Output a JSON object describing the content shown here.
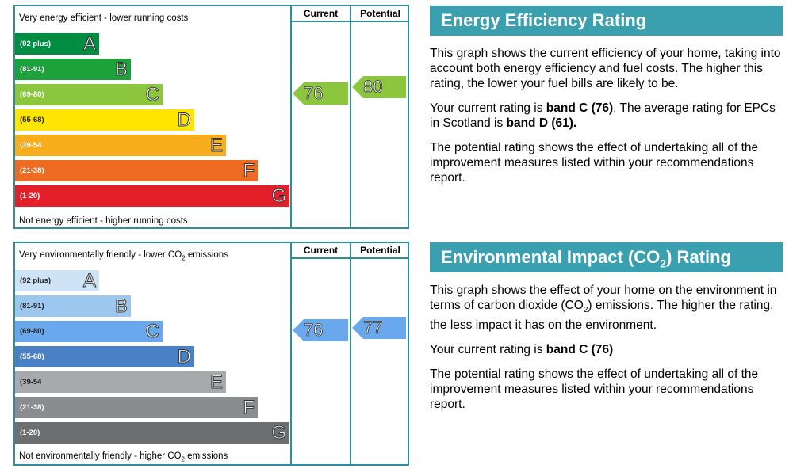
{
  "energy": {
    "top_caption": "Very energy efficient - lower running costs",
    "bottom_caption": "Not energy efficient - higher running costs",
    "current_header": "Current",
    "potential_header": "Potential",
    "bands": [
      {
        "range": "(92 plus)",
        "letter": "A",
        "color": "#008c41"
      },
      {
        "range": "(81-91)",
        "letter": "B",
        "color": "#1da23b"
      },
      {
        "range": "(69-80)",
        "letter": "C",
        "color": "#8cc63f"
      },
      {
        "range": "(55-68)",
        "letter": "D",
        "color": "#ffe500"
      },
      {
        "range": "(39-54",
        "letter": "E",
        "color": "#f7ad1c"
      },
      {
        "range": "(21-38)",
        "letter": "F",
        "color": "#ee6b24"
      },
      {
        "range": "(1-20)",
        "letter": "G",
        "color": "#e3202a"
      }
    ],
    "current_value": "76",
    "current_color": "#8cc63f",
    "potential_value": "80",
    "potential_color": "#8cc63f"
  },
  "environment": {
    "top_caption_pre": "Very environmentally friendly - lower CO",
    "top_caption_sub": "2",
    "top_caption_post": " emissions",
    "bottom_caption_pre": "Not environmentally friendly - higher CO",
    "bottom_caption_sub": "2",
    "bottom_caption_post": " emissions",
    "current_header": "Current",
    "potential_header": "Potential",
    "bands": [
      {
        "range": "(92 plus)",
        "letter": "A",
        "color": "#cfe3f6"
      },
      {
        "range": "(81-91)",
        "letter": "B",
        "color": "#9cc8ef"
      },
      {
        "range": "(69-80)",
        "letter": "C",
        "color": "#6aa8ee"
      },
      {
        "range": "(55-68)",
        "letter": "D",
        "color": "#4a80c6"
      },
      {
        "range": "(39-54",
        "letter": "E",
        "color": "#a7a9ac"
      },
      {
        "range": "(21-38)",
        "letter": "F",
        "color": "#8a8c8f"
      },
      {
        "range": "(1-20)",
        "letter": "G",
        "color": "#6d6e70"
      }
    ],
    "current_value": "76",
    "current_color": "#6aa8ee",
    "potential_value": "77",
    "potential_color": "#6aa8ee"
  },
  "panel_energy": {
    "title": "Energy Efficiency Rating",
    "p1": "This graph shows the current efficiency of your home, taking into account both energy efficiency and fuel costs. The higher this rating, the lower your fuel bills are likely to be.",
    "p2_pre": "Your current rating is ",
    "p2_bold1": "band C (76)",
    "p2_mid": ". The average rating for EPCs in Scotland is ",
    "p2_bold2": "band D (61).",
    "p3": "The potential rating shows the effect of undertaking all of the improvement measures listed within your recommendations report."
  },
  "panel_env": {
    "title_pre": "Environmental Impact (CO",
    "title_sub": "2",
    "title_post": ") Rating",
    "p1_pre": "This graph shows the effect of your home on the environment in terms of carbon dioxide (CO",
    "p1_sub": "2",
    "p1_post": ") emissions. The higher the rating, the less impact it has on the environment.",
    "p2_pre": "Your current rating is ",
    "p2_bold": "band C (76)",
    "p3": "The potential rating shows the effect of undertaking all of the improvement measures listed within your recommendations report."
  }
}
